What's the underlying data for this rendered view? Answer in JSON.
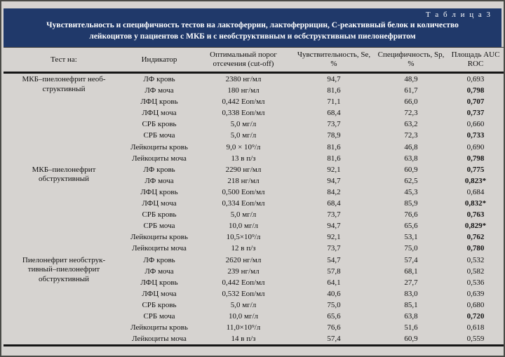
{
  "banner": {
    "table_label": "Т а б л и ц а   3",
    "title_lines": [
      "Чувствительность и специфичность тестов на лактоферрин, лактоферрицин, С-реактивный белок и количество",
      "лейкоцитов у пациентов с МКБ и с необструктивным и осбструктивным пиелонефритом"
    ]
  },
  "table": {
    "columns": [
      "Тест на:",
      "Индикатор",
      "Оптимальный порог отсечения (cut-off)",
      "Чувствительность, Se, %",
      "Специфичность, Sp, %",
      "Площадь AUC ROC"
    ],
    "groups": [
      {
        "test_lines": [
          "МКБ–пиелонефрит необ-",
          "структивный"
        ],
        "rows": [
          {
            "indicator": "ЛФ кровь",
            "cutoff": "2380 нг/мл",
            "se": "94,7",
            "sp": "48,9",
            "auc": "0,693",
            "bold": false
          },
          {
            "indicator": "ЛФ моча",
            "cutoff": "180 нг/мл",
            "se": "81,6",
            "sp": "61,7",
            "auc": "0,798",
            "bold": true
          },
          {
            "indicator": "ЛФЦ кровь",
            "cutoff": "0,442 Еоп/мл",
            "se": "71,1",
            "sp": "66,0",
            "auc": "0,707",
            "bold": true
          },
          {
            "indicator": "ЛФЦ моча",
            "cutoff": "0,338 Еоп/мл",
            "se": "68,4",
            "sp": "72,3",
            "auc": "0,737",
            "bold": true
          },
          {
            "indicator": "СРБ кровь",
            "cutoff": "5,0 мг/л",
            "se": "73,7",
            "sp": "63,2",
            "auc": "0,660",
            "bold": false
          },
          {
            "indicator": "СРБ моча",
            "cutoff": "5,0 мг/л",
            "se": "78,9",
            "sp": "72,3",
            "auc": "0,733",
            "bold": true
          },
          {
            "indicator": "Лейкоциты кровь",
            "cutoff": "9,0 × 10⁹/л",
            "se": "81,6",
            "sp": "46,8",
            "auc": "0,690",
            "bold": false
          },
          {
            "indicator": "Лейкоциты моча",
            "cutoff": "13 в п/з",
            "se": "81,6",
            "sp": "63,8",
            "auc": "0,798",
            "bold": true
          }
        ]
      },
      {
        "test_lines": [
          "МКБ–пиелонефрит",
          "обструктивный"
        ],
        "rows": [
          {
            "indicator": "ЛФ кровь",
            "cutoff": "2290 нг/мл",
            "se": "92,1",
            "sp": "60,9",
            "auc": "0,775",
            "bold": true
          },
          {
            "indicator": "ЛФ моча",
            "cutoff": "218 нг/мл",
            "se": "94,7",
            "sp": "62,5",
            "auc": "0,823*",
            "bold": true
          },
          {
            "indicator": "ЛФЦ кровь",
            "cutoff": "0,500 Еоп/мл",
            "se": "84,2",
            "sp": "45,3",
            "auc": "0,684",
            "bold": false
          },
          {
            "indicator": "ЛФЦ моча",
            "cutoff": "0,334 Еоп/мл",
            "se": "68,4",
            "sp": "85,9",
            "auc": "0,832*",
            "bold": true
          },
          {
            "indicator": "СРБ кровь",
            "cutoff": "5,0 мг/л",
            "se": "73,7",
            "sp": "76,6",
            "auc": "0,763",
            "bold": true
          },
          {
            "indicator": "СРБ моча",
            "cutoff": "10,0 мг/л",
            "se": "94,7",
            "sp": "65,6",
            "auc": "0,829*",
            "bold": true
          },
          {
            "indicator": "Лейкоциты кровь",
            "cutoff": "10,5×10⁹/л",
            "se": "92,1",
            "sp": "53,1",
            "auc": "0,762",
            "bold": true
          },
          {
            "indicator": "Лейкоциты моча",
            "cutoff": "12 в п/з",
            "se": "73,7",
            "sp": "75,0",
            "auc": "0,780",
            "bold": true
          }
        ]
      },
      {
        "test_lines": [
          "Пиелонефрит необструк-",
          "тивный–пиелонефрит",
          "обструктивный"
        ],
        "rows": [
          {
            "indicator": "ЛФ кровь",
            "cutoff": "2620 нг/мл",
            "se": "54,7",
            "sp": "57,4",
            "auc": "0,532",
            "bold": false
          },
          {
            "indicator": "ЛФ моча",
            "cutoff": "239 нг/мл",
            "se": "57,8",
            "sp": "68,1",
            "auc": "0,582",
            "bold": false
          },
          {
            "indicator": "ЛФЦ кровь",
            "cutoff": "0,442 Еоп/мл",
            "se": "64,1",
            "sp": "27,7",
            "auc": "0,536",
            "bold": false
          },
          {
            "indicator": "ЛФЦ моча",
            "cutoff": "0,532 Еоп/мл",
            "se": "40,6",
            "sp": "83,0",
            "auc": "0,639",
            "bold": false
          },
          {
            "indicator": "СРБ кровь",
            "cutoff": "5,0 мг/л",
            "se": "75,0",
            "sp": "85,1",
            "auc": "0,680",
            "bold": false
          },
          {
            "indicator": "СРБ моча",
            "cutoff": "10,0 мг/л",
            "se": "65,6",
            "sp": "63,8",
            "auc": "0,720",
            "bold": true
          },
          {
            "indicator": "Лейкоциты кровь",
            "cutoff": "11,0×10⁹/л",
            "se": "76,6",
            "sp": "51,6",
            "auc": "0,618",
            "bold": false
          },
          {
            "indicator": "Лейкоциты моча",
            "cutoff": "14 в п/з",
            "se": "57,4",
            "sp": "60,9",
            "auc": "0,559",
            "bold": false
          }
        ]
      }
    ],
    "colors": {
      "banner_bg": "#20396a",
      "banner_text": "#ffffff",
      "page_bg": "#d6d3d0",
      "rule": "#161616"
    }
  }
}
